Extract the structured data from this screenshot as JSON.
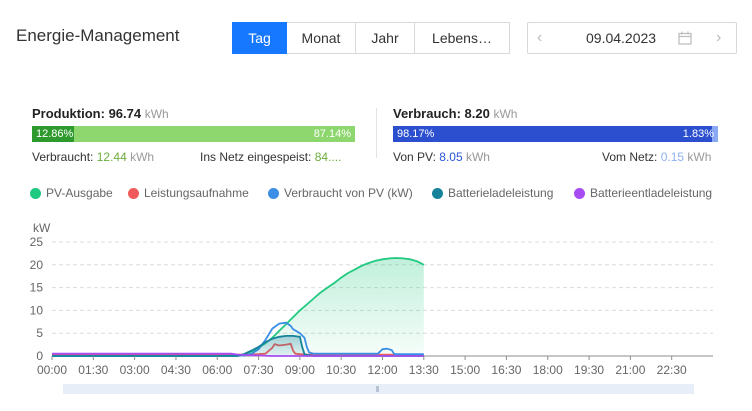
{
  "header": {
    "title": "Energie-Management",
    "tabs": [
      {
        "label": "Tag",
        "active": true
      },
      {
        "label": "Monat",
        "active": false
      },
      {
        "label": "Jahr",
        "active": false
      },
      {
        "label": "Lebens…",
        "active": false
      }
    ],
    "date": "09.04.2023",
    "prev_icon": "chevron-left-icon",
    "next_icon": "chevron-right-icon",
    "calendar_icon": "calendar-icon"
  },
  "production": {
    "label": "Produktion:",
    "value": "96.74",
    "unit": "kWh",
    "bar_left_pct": "12.86%",
    "bar_right_pct": "87.14%",
    "bar_fraction": 0.1286,
    "left_color": "#2e9a2e",
    "right_color": "#8ed66e",
    "consumed_label": "Verbraucht:",
    "consumed_value": "12.44",
    "consumed_unit": "kWh",
    "grid_label": "Ins Netz eingespeist:",
    "grid_value": "84...."
  },
  "consumption": {
    "label": "Verbrauch:",
    "value": "8.20",
    "unit": "kWh",
    "bar_left_pct": "98.17%",
    "bar_right_pct": "1.83%",
    "bar_fraction": 0.9817,
    "left_color": "#2b4fcf",
    "right_color": "#8aa8f3",
    "pv_label": "Von PV:",
    "pv_value": "8.05",
    "pv_unit": "kWh",
    "net_label": "Vom Netz:",
    "net_value": "0.15",
    "net_unit": "kWh"
  },
  "legend": [
    {
      "name": "PV-Ausgabe",
      "color": "#1fc97f"
    },
    {
      "name": "Leistungsaufnahme",
      "color": "#f05a5a"
    },
    {
      "name": "Verbraucht von PV (kW)",
      "color": "#3a8ee6"
    },
    {
      "name": "Batterieladeleistung",
      "color": "#16839a"
    },
    {
      "name": "Batterieentladeleistung",
      "color": "#a64cf2"
    }
  ],
  "chart_data": {
    "type": "area",
    "ylabel": "kW",
    "ylim": [
      0,
      25
    ],
    "yticks": [
      0,
      5,
      10,
      15,
      20,
      25
    ],
    "xlim": [
      "00:00",
      "24:00"
    ],
    "xticks": [
      "00:00",
      "01:30",
      "03:00",
      "04:30",
      "06:00",
      "07:30",
      "09:00",
      "10:30",
      "12:00",
      "13:30",
      "15:00",
      "16:30",
      "18:00",
      "19:30",
      "21:00",
      "22:30"
    ],
    "grid": true,
    "series": [
      {
        "name": "PV-Ausgabe",
        "color": "#1fc97f",
        "fill": true,
        "x": [
          "00:00",
          "06:45",
          "07:00",
          "07:15",
          "07:30",
          "07:45",
          "08:00",
          "08:15",
          "08:30",
          "08:45",
          "09:00",
          "09:15",
          "09:30",
          "09:45",
          "10:00",
          "10:15",
          "10:30",
          "10:45",
          "11:00",
          "11:15",
          "11:30",
          "11:45",
          "12:00",
          "12:15",
          "12:30",
          "12:45",
          "13:00",
          "13:15",
          "13:30"
        ],
        "y": [
          0,
          0,
          0.4,
          1.0,
          1.8,
          2.8,
          4.0,
          5.5,
          7.0,
          8.5,
          10.0,
          11.3,
          12.6,
          13.9,
          15.0,
          16.0,
          17.2,
          18.2,
          19.0,
          19.8,
          20.4,
          20.9,
          21.2,
          21.4,
          21.5,
          21.4,
          21.2,
          20.8,
          20.0
        ]
      },
      {
        "name": "Leistungsaufnahme",
        "color": "#f05a5a",
        "fill": false,
        "x": [
          "00:00",
          "06:00",
          "07:00",
          "07:30",
          "07:45",
          "08:00",
          "08:05",
          "08:15",
          "08:30",
          "08:40",
          "08:45",
          "08:50",
          "09:00",
          "09:15",
          "09:30",
          "10:00",
          "12:00",
          "13:30"
        ],
        "y": [
          0.3,
          0.3,
          0.3,
          0.4,
          0.5,
          1.8,
          2.6,
          2.3,
          2.5,
          2.7,
          1.2,
          0.5,
          0.4,
          0.3,
          0.3,
          0.3,
          0.3,
          0.3
        ]
      },
      {
        "name": "Verbraucht von PV (kW)",
        "color": "#3a8ee6",
        "fill": false,
        "x": [
          "00:00",
          "06:00",
          "07:00",
          "07:15",
          "07:30",
          "07:45",
          "08:00",
          "08:15",
          "08:30",
          "08:40",
          "08:45",
          "09:00",
          "09:10",
          "09:15",
          "09:20",
          "09:30",
          "10:00",
          "11:00",
          "11:50",
          "12:00",
          "12:10",
          "12:20",
          "12:25",
          "12:30",
          "13:00",
          "13:30"
        ],
        "y": [
          0,
          0,
          0.1,
          0.5,
          1.5,
          3.5,
          6.0,
          7.1,
          7.3,
          6.6,
          5.9,
          5.0,
          4.0,
          2.0,
          0.8,
          0.5,
          0.5,
          0.5,
          0.5,
          1.5,
          1.6,
          1.3,
          0.5,
          0.4,
          0.4,
          0.4
        ]
      },
      {
        "name": "Batterieladeleistung",
        "color": "#16839a",
        "fill": true,
        "x": [
          "00:00",
          "06:45",
          "07:00",
          "07:15",
          "07:30",
          "07:45",
          "08:00",
          "08:15",
          "08:30",
          "08:45",
          "09:00",
          "09:05",
          "09:10",
          "09:20",
          "09:30",
          "13:30"
        ],
        "y": [
          0,
          0,
          0.5,
          1.2,
          2.0,
          3.0,
          3.8,
          4.2,
          4.4,
          4.4,
          4.2,
          2.0,
          0.4,
          0.2,
          0,
          0
        ]
      },
      {
        "name": "Batterieentladeleistung",
        "color": "#a64cf2",
        "fill": false,
        "x": [
          "00:00",
          "06:30",
          "06:45",
          "07:30",
          "08:00",
          "13:30"
        ],
        "y": [
          0.5,
          0.5,
          0.3,
          0.1,
          0,
          0
        ]
      }
    ]
  }
}
